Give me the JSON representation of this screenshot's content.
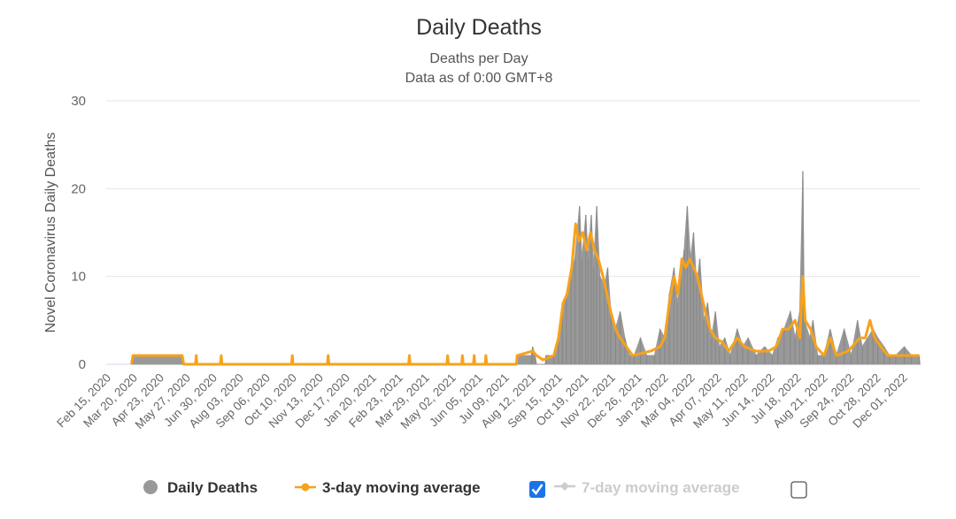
{
  "chart_data": {
    "type": "area",
    "title": "Daily Deaths",
    "subtitle": [
      "Deaths per Day",
      "Data as of 0:00 GMT+8"
    ],
    "ylabel": "Novel Coronavirus Daily Deaths",
    "xlabel": "",
    "ylim": [
      0,
      30
    ],
    "yticks": [
      0,
      10,
      20,
      30
    ],
    "xlim": [
      "2020-02-15",
      "2022-12-21"
    ],
    "xtick_labels": [
      "Feb 15, 2020",
      "Mar 20, 2020",
      "Apr 23, 2020",
      "May 27, 2020",
      "Jun 30, 2020",
      "Aug 03, 2020",
      "Sep 06, 2020",
      "Oct 10, 2020",
      "Nov 13, 2020",
      "Dec 17, 2020",
      "Jan 20, 2021",
      "Feb 23, 2021",
      "Mar 29, 2021",
      "May 02, 2021",
      "Jun 05, 2021",
      "Jul 09, 2021",
      "Aug 12, 2021",
      "Sep 15, 2021",
      "Oct 19, 2021",
      "Nov 22, 2021",
      "Dec 26, 2021",
      "Jan 29, 2022",
      "Mar 04, 2022",
      "Apr 07, 2022",
      "May 11, 2022",
      "Jun 14, 2022",
      "Jul 18, 2022",
      "Aug 21, 2022",
      "Sep 24, 2022",
      "Oct 28, 2022",
      "Dec 01, 2022"
    ],
    "grid": true,
    "legend_placement": "bottom",
    "series": [
      {
        "name": "Daily Deaths",
        "color": "#999999",
        "visible": true,
        "points": [
          [
            "2020-03-16",
            0
          ],
          [
            "2020-03-18",
            1
          ],
          [
            "2020-05-20",
            1
          ],
          [
            "2020-05-22",
            0
          ],
          [
            "2020-06-06",
            0
          ],
          [
            "2020-06-07",
            1
          ],
          [
            "2020-06-08",
            0
          ],
          [
            "2020-07-08",
            0
          ],
          [
            "2020-07-09",
            1
          ],
          [
            "2020-07-10",
            0
          ],
          [
            "2020-10-07",
            0
          ],
          [
            "2020-10-08",
            1
          ],
          [
            "2020-10-09",
            0
          ],
          [
            "2020-11-22",
            0
          ],
          [
            "2020-11-23",
            1
          ],
          [
            "2020-11-24",
            0
          ],
          [
            "2021-03-06",
            0
          ],
          [
            "2021-03-07",
            1
          ],
          [
            "2021-03-08",
            0
          ],
          [
            "2021-04-24",
            0
          ],
          [
            "2021-04-25",
            1
          ],
          [
            "2021-04-26",
            0
          ],
          [
            "2021-05-13",
            0
          ],
          [
            "2021-05-14",
            1
          ],
          [
            "2021-05-15",
            0
          ],
          [
            "2021-05-28",
            0
          ],
          [
            "2021-05-29",
            1
          ],
          [
            "2021-05-30",
            0
          ],
          [
            "2021-06-12",
            0
          ],
          [
            "2021-06-13",
            1
          ],
          [
            "2021-06-14",
            0
          ],
          [
            "2021-07-22",
            0
          ],
          [
            "2021-07-23",
            1
          ],
          [
            "2021-08-10",
            1
          ],
          [
            "2021-08-12",
            2
          ],
          [
            "2021-08-15",
            1
          ],
          [
            "2021-08-17",
            0
          ],
          [
            "2021-08-28",
            0
          ],
          [
            "2021-08-29",
            1
          ],
          [
            "2021-09-08",
            1
          ],
          [
            "2021-09-14",
            3
          ],
          [
            "2021-09-19",
            6
          ],
          [
            "2021-09-24",
            8
          ],
          [
            "2021-09-30",
            10
          ],
          [
            "2021-10-05",
            12
          ],
          [
            "2021-10-11",
            18
          ],
          [
            "2021-10-14",
            12
          ],
          [
            "2021-10-19",
            17
          ],
          [
            "2021-10-22",
            12
          ],
          [
            "2021-10-26",
            17
          ],
          [
            "2021-10-29",
            11
          ],
          [
            "2021-11-02",
            18
          ],
          [
            "2021-11-06",
            10
          ],
          [
            "2021-11-12",
            9
          ],
          [
            "2021-11-16",
            11
          ],
          [
            "2021-11-20",
            6
          ],
          [
            "2021-11-26",
            4
          ],
          [
            "2021-12-02",
            6
          ],
          [
            "2021-12-08",
            3
          ],
          [
            "2021-12-14",
            1
          ],
          [
            "2021-12-20",
            1
          ],
          [
            "2021-12-28",
            3
          ],
          [
            "2022-01-05",
            1
          ],
          [
            "2022-01-15",
            1
          ],
          [
            "2022-01-22",
            4
          ],
          [
            "2022-01-28",
            3
          ],
          [
            "2022-02-03",
            8
          ],
          [
            "2022-02-09",
            11
          ],
          [
            "2022-02-13",
            7
          ],
          [
            "2022-02-18",
            10
          ],
          [
            "2022-02-22",
            13
          ],
          [
            "2022-02-26",
            18
          ],
          [
            "2022-03-02",
            12
          ],
          [
            "2022-03-06",
            15
          ],
          [
            "2022-03-10",
            9
          ],
          [
            "2022-03-14",
            12
          ],
          [
            "2022-03-19",
            5
          ],
          [
            "2022-03-24",
            7
          ],
          [
            "2022-03-29",
            3
          ],
          [
            "2022-04-03",
            6
          ],
          [
            "2022-04-08",
            2
          ],
          [
            "2022-04-15",
            3
          ],
          [
            "2022-04-22",
            1
          ],
          [
            "2022-05-01",
            4
          ],
          [
            "2022-05-08",
            2
          ],
          [
            "2022-05-15",
            3
          ],
          [
            "2022-05-25",
            1
          ],
          [
            "2022-06-05",
            2
          ],
          [
            "2022-06-15",
            1
          ],
          [
            "2022-06-22",
            3
          ],
          [
            "2022-06-30",
            4
          ],
          [
            "2022-07-08",
            6
          ],
          [
            "2022-07-14",
            3
          ],
          [
            "2022-07-20",
            6
          ],
          [
            "2022-07-24",
            22
          ],
          [
            "2022-07-26",
            5
          ],
          [
            "2022-08-02",
            3
          ],
          [
            "2022-08-06",
            5
          ],
          [
            "2022-08-12",
            1
          ],
          [
            "2022-08-20",
            1
          ],
          [
            "2022-08-28",
            4
          ],
          [
            "2022-09-05",
            1
          ],
          [
            "2022-09-15",
            4
          ],
          [
            "2022-09-24",
            1
          ],
          [
            "2022-10-02",
            5
          ],
          [
            "2022-10-08",
            2
          ],
          [
            "2022-10-15",
            3
          ],
          [
            "2022-10-22",
            4
          ],
          [
            "2022-10-28",
            3
          ],
          [
            "2022-11-05",
            2
          ],
          [
            "2022-11-12",
            1
          ],
          [
            "2022-11-20",
            1
          ],
          [
            "2022-12-01",
            2
          ],
          [
            "2022-12-10",
            1
          ],
          [
            "2022-12-20",
            1
          ],
          [
            "2022-12-21",
            0
          ]
        ]
      },
      {
        "name": "3-day moving average",
        "color": "#f7a21b",
        "visible": true,
        "points": [
          [
            "2020-03-16",
            0
          ],
          [
            "2020-03-18",
            1
          ],
          [
            "2020-05-20",
            1
          ],
          [
            "2020-05-22",
            0
          ],
          [
            "2020-06-06",
            0
          ],
          [
            "2020-06-07",
            1
          ],
          [
            "2020-06-08",
            0
          ],
          [
            "2020-07-08",
            0
          ],
          [
            "2020-07-09",
            1
          ],
          [
            "2020-07-10",
            0
          ],
          [
            "2020-10-07",
            0
          ],
          [
            "2020-10-08",
            1
          ],
          [
            "2020-10-09",
            0
          ],
          [
            "2020-11-22",
            0
          ],
          [
            "2020-11-23",
            1
          ],
          [
            "2020-11-24",
            0
          ],
          [
            "2021-03-06",
            0
          ],
          [
            "2021-03-07",
            1
          ],
          [
            "2021-03-08",
            0
          ],
          [
            "2021-04-24",
            0
          ],
          [
            "2021-04-25",
            1
          ],
          [
            "2021-04-26",
            0
          ],
          [
            "2021-05-13",
            0
          ],
          [
            "2021-05-14",
            1
          ],
          [
            "2021-05-15",
            0
          ],
          [
            "2021-05-28",
            0
          ],
          [
            "2021-05-29",
            1
          ],
          [
            "2021-05-30",
            0
          ],
          [
            "2021-06-12",
            0
          ],
          [
            "2021-06-13",
            1
          ],
          [
            "2021-06-14",
            0
          ],
          [
            "2021-07-22",
            0
          ],
          [
            "2021-07-23",
            1
          ],
          [
            "2021-08-12",
            1.5
          ],
          [
            "2021-08-17",
            1
          ],
          [
            "2021-08-25",
            0.5
          ],
          [
            "2021-09-08",
            1
          ],
          [
            "2021-09-14",
            3
          ],
          [
            "2021-09-20",
            7
          ],
          [
            "2021-09-25",
            8
          ],
          [
            "2021-10-01",
            11
          ],
          [
            "2021-10-06",
            16
          ],
          [
            "2021-10-10",
            14
          ],
          [
            "2021-10-15",
            15
          ],
          [
            "2021-10-20",
            13
          ],
          [
            "2021-10-25",
            15
          ],
          [
            "2021-10-30",
            13
          ],
          [
            "2021-11-04",
            12
          ],
          [
            "2021-11-10",
            10
          ],
          [
            "2021-11-15",
            8
          ],
          [
            "2021-11-20",
            6
          ],
          [
            "2021-11-26",
            4
          ],
          [
            "2021-12-02",
            3
          ],
          [
            "2021-12-10",
            2
          ],
          [
            "2021-12-18",
            1
          ],
          [
            "2022-01-10",
            1.5
          ],
          [
            "2022-01-22",
            2
          ],
          [
            "2022-01-28",
            3
          ],
          [
            "2022-02-03",
            7
          ],
          [
            "2022-02-09",
            10
          ],
          [
            "2022-02-14",
            8
          ],
          [
            "2022-02-19",
            12
          ],
          [
            "2022-02-24",
            11
          ],
          [
            "2022-03-01",
            12
          ],
          [
            "2022-03-06",
            11
          ],
          [
            "2022-03-11",
            10
          ],
          [
            "2022-03-16",
            8
          ],
          [
            "2022-03-21",
            6
          ],
          [
            "2022-03-27",
            4
          ],
          [
            "2022-04-03",
            3
          ],
          [
            "2022-04-12",
            2.5
          ],
          [
            "2022-04-20",
            1.5
          ],
          [
            "2022-05-01",
            3
          ],
          [
            "2022-05-10",
            2
          ],
          [
            "2022-05-25",
            1.5
          ],
          [
            "2022-06-10",
            1.5
          ],
          [
            "2022-06-20",
            2
          ],
          [
            "2022-06-28",
            4
          ],
          [
            "2022-07-06",
            4
          ],
          [
            "2022-07-14",
            5
          ],
          [
            "2022-07-20",
            3
          ],
          [
            "2022-07-24",
            10
          ],
          [
            "2022-07-27",
            5
          ],
          [
            "2022-08-03",
            4
          ],
          [
            "2022-08-10",
            2
          ],
          [
            "2022-08-20",
            1
          ],
          [
            "2022-08-28",
            3
          ],
          [
            "2022-09-05",
            1
          ],
          [
            "2022-09-20",
            1.5
          ],
          [
            "2022-10-05",
            3
          ],
          [
            "2022-10-12",
            3
          ],
          [
            "2022-10-18",
            5
          ],
          [
            "2022-10-24",
            3
          ],
          [
            "2022-11-01",
            2
          ],
          [
            "2022-11-10",
            1
          ],
          [
            "2022-12-20",
            1
          ]
        ]
      },
      {
        "name": "7-day moving average",
        "color": "#cccccc",
        "visible": false,
        "points": []
      }
    ]
  },
  "legend": {
    "items": [
      {
        "label": "Daily Deaths",
        "icon": "circle-marker-icon",
        "color": "#999999"
      },
      {
        "label": "3-day moving average",
        "icon": "line-marker-icon",
        "color": "#f7a21b",
        "checkbox_checked": true
      },
      {
        "label": "7-day moving average",
        "icon": "line-marker-icon",
        "color": "#cccccc",
        "checkbox_checked": false
      }
    ],
    "checkbox_color": "#1a73e8"
  }
}
